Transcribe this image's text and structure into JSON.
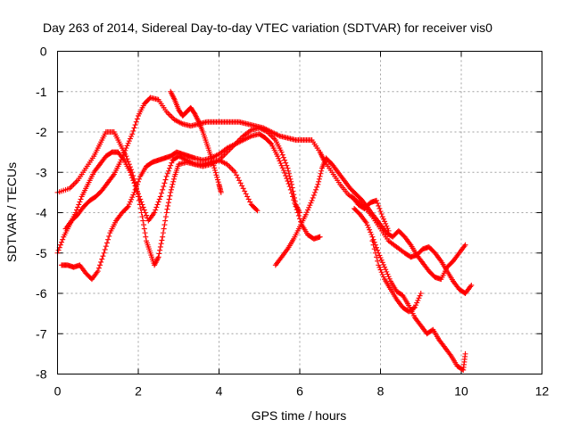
{
  "chart_data": {
    "type": "scatter",
    "title": "Day 263 of 2014, Sidereal Day-to-day VTEC variation (SDTVAR) for receiver vis0",
    "xlabel": "GPS time / hours",
    "ylabel": "SDTVAR / TECUs",
    "xlim": [
      0,
      12
    ],
    "ylim": [
      -8,
      0
    ],
    "xticks": [
      0,
      2,
      4,
      6,
      8,
      10,
      12
    ],
    "yticks": [
      0,
      -1,
      -2,
      -3,
      -4,
      -5,
      -6,
      -7,
      -8
    ],
    "grid": true,
    "marker": "+",
    "color": "#ff0000",
    "series": [
      {
        "name": "trace-1",
        "points": [
          [
            0.0,
            -3.5
          ],
          [
            0.3,
            -3.4
          ],
          [
            0.5,
            -3.2
          ],
          [
            0.7,
            -2.9
          ],
          [
            0.9,
            -2.6
          ],
          [
            1.05,
            -2.3
          ],
          [
            1.2,
            -2.0
          ],
          [
            1.4,
            -2.0
          ],
          [
            1.55,
            -2.3
          ],
          [
            1.7,
            -2.6
          ],
          [
            1.85,
            -3.0
          ],
          [
            1.98,
            -3.5
          ],
          [
            2.1,
            -4.1
          ],
          [
            2.2,
            -4.7
          ],
          [
            2.3,
            -5.0
          ],
          [
            2.4,
            -5.3
          ],
          [
            2.5,
            -5.1
          ],
          [
            2.6,
            -4.6
          ],
          [
            2.7,
            -4.0
          ],
          [
            2.8,
            -3.5
          ],
          [
            2.9,
            -3.1
          ],
          [
            3.0,
            -2.8
          ],
          [
            3.2,
            -2.75
          ],
          [
            3.4,
            -2.8
          ],
          [
            3.6,
            -2.85
          ],
          [
            3.8,
            -2.8
          ],
          [
            4.0,
            -2.7
          ],
          [
            4.2,
            -2.5
          ],
          [
            4.4,
            -2.3
          ],
          [
            4.6,
            -2.1
          ],
          [
            4.8,
            -1.95
          ],
          [
            5.0,
            -1.9
          ],
          [
            5.2,
            -2.0
          ],
          [
            5.4,
            -2.2
          ],
          [
            5.55,
            -2.5
          ],
          [
            5.7,
            -2.9
          ],
          [
            5.8,
            -3.3
          ],
          [
            5.9,
            -3.8
          ],
          [
            6.0,
            -4.0
          ]
        ]
      },
      {
        "name": "trace-2",
        "points": [
          [
            0.0,
            -5.0
          ],
          [
            0.15,
            -4.6
          ],
          [
            0.3,
            -4.3
          ],
          [
            0.45,
            -4.0
          ],
          [
            0.6,
            -3.6
          ],
          [
            0.75,
            -3.3
          ],
          [
            0.9,
            -3.0
          ],
          [
            1.05,
            -2.8
          ],
          [
            1.2,
            -2.6
          ],
          [
            1.35,
            -2.5
          ],
          [
            1.5,
            -2.5
          ],
          [
            1.65,
            -2.7
          ],
          [
            1.8,
            -3.0
          ],
          [
            1.95,
            -3.4
          ],
          [
            2.1,
            -3.8
          ],
          [
            2.25,
            -4.2
          ],
          [
            2.4,
            -4.0
          ],
          [
            2.55,
            -3.6
          ],
          [
            2.7,
            -3.1
          ],
          [
            2.85,
            -2.7
          ],
          [
            3.0,
            -2.6
          ],
          [
            3.2,
            -2.7
          ],
          [
            3.4,
            -2.8
          ],
          [
            3.6,
            -2.8
          ],
          [
            3.8,
            -2.75
          ],
          [
            4.0,
            -2.7
          ],
          [
            4.2,
            -2.8
          ],
          [
            4.4,
            -3.0
          ],
          [
            4.6,
            -3.4
          ],
          [
            4.8,
            -3.8
          ],
          [
            4.95,
            -3.95
          ]
        ]
      },
      {
        "name": "trace-3",
        "points": [
          [
            0.2,
            -4.4
          ],
          [
            0.35,
            -4.2
          ],
          [
            0.5,
            -4.05
          ],
          [
            0.65,
            -3.85
          ],
          [
            0.8,
            -3.7
          ],
          [
            0.95,
            -3.6
          ],
          [
            1.1,
            -3.45
          ],
          [
            1.25,
            -3.25
          ],
          [
            1.4,
            -3.05
          ],
          [
            1.55,
            -2.75
          ],
          [
            1.7,
            -2.4
          ],
          [
            1.85,
            -2.05
          ],
          [
            2.0,
            -1.6
          ],
          [
            2.15,
            -1.3
          ],
          [
            2.3,
            -1.15
          ],
          [
            2.5,
            -1.2
          ],
          [
            2.7,
            -1.5
          ],
          [
            2.9,
            -1.7
          ],
          [
            3.1,
            -1.8
          ],
          [
            3.3,
            -1.85
          ],
          [
            3.5,
            -1.8
          ],
          [
            3.7,
            -1.75
          ],
          [
            3.9,
            -1.75
          ],
          [
            4.1,
            -1.75
          ],
          [
            4.3,
            -1.75
          ],
          [
            4.5,
            -1.75
          ],
          [
            4.7,
            -1.8
          ],
          [
            4.9,
            -1.85
          ],
          [
            5.1,
            -1.9
          ],
          [
            5.3,
            -2.0
          ],
          [
            5.5,
            -2.1
          ],
          [
            5.7,
            -2.15
          ],
          [
            5.9,
            -2.2
          ],
          [
            6.1,
            -2.2
          ],
          [
            6.3,
            -2.2
          ],
          [
            6.5,
            -2.5
          ],
          [
            6.6,
            -2.7
          ],
          [
            6.8,
            -3.0
          ],
          [
            7.0,
            -3.3
          ],
          [
            7.2,
            -3.55
          ],
          [
            7.4,
            -3.7
          ],
          [
            7.6,
            -3.85
          ],
          [
            7.8,
            -4.1
          ],
          [
            8.0,
            -4.4
          ],
          [
            8.2,
            -4.7
          ],
          [
            8.4,
            -4.85
          ],
          [
            8.6,
            -5.0
          ],
          [
            8.75,
            -5.1
          ],
          [
            8.9,
            -5.05
          ],
          [
            9.05,
            -4.9
          ],
          [
            9.2,
            -4.85
          ],
          [
            9.35,
            -5.0
          ],
          [
            9.5,
            -5.2
          ],
          [
            9.65,
            -5.45
          ],
          [
            9.8,
            -5.7
          ],
          [
            9.95,
            -5.9
          ],
          [
            10.1,
            -6.0
          ],
          [
            10.25,
            -5.8
          ]
        ]
      },
      {
        "name": "trace-4",
        "points": [
          [
            0.1,
            -5.3
          ],
          [
            0.25,
            -5.3
          ],
          [
            0.4,
            -5.35
          ],
          [
            0.55,
            -5.3
          ],
          [
            0.7,
            -5.5
          ],
          [
            0.85,
            -5.65
          ],
          [
            1.0,
            -5.45
          ],
          [
            1.15,
            -5.0
          ],
          [
            1.3,
            -4.5
          ],
          [
            1.45,
            -4.2
          ],
          [
            1.6,
            -4.0
          ],
          [
            1.75,
            -3.85
          ],
          [
            1.9,
            -3.5
          ],
          [
            2.05,
            -3.1
          ],
          [
            2.2,
            -2.85
          ],
          [
            2.35,
            -2.75
          ],
          [
            2.5,
            -2.7
          ],
          [
            2.65,
            -2.65
          ],
          [
            2.8,
            -2.6
          ],
          [
            2.95,
            -2.5
          ],
          [
            3.1,
            -2.55
          ],
          [
            3.25,
            -2.6
          ],
          [
            3.4,
            -2.65
          ],
          [
            3.6,
            -2.7
          ],
          [
            3.8,
            -2.65
          ],
          [
            4.0,
            -2.55
          ],
          [
            4.2,
            -2.4
          ],
          [
            4.4,
            -2.3
          ],
          [
            4.6,
            -2.2
          ],
          [
            4.8,
            -2.1
          ],
          [
            5.0,
            -2.05
          ],
          [
            5.15,
            -2.15
          ],
          [
            5.3,
            -2.3
          ],
          [
            5.45,
            -2.6
          ],
          [
            5.6,
            -2.95
          ],
          [
            5.75,
            -3.35
          ],
          [
            5.9,
            -3.85
          ],
          [
            6.05,
            -4.3
          ],
          [
            6.2,
            -4.55
          ],
          [
            6.35,
            -4.65
          ],
          [
            6.5,
            -4.6
          ]
        ]
      },
      {
        "name": "trace-5",
        "points": [
          [
            2.8,
            -1.0
          ],
          [
            2.9,
            -1.2
          ],
          [
            3.0,
            -1.45
          ],
          [
            3.1,
            -1.6
          ],
          [
            3.2,
            -1.5
          ],
          [
            3.3,
            -1.4
          ],
          [
            3.4,
            -1.55
          ],
          [
            3.5,
            -1.75
          ],
          [
            3.6,
            -2.0
          ],
          [
            3.7,
            -2.3
          ],
          [
            3.8,
            -2.6
          ],
          [
            3.9,
            -2.95
          ],
          [
            4.0,
            -3.3
          ],
          [
            4.05,
            -3.5
          ]
        ]
      },
      {
        "name": "trace-6",
        "points": [
          [
            5.4,
            -5.3
          ],
          [
            5.55,
            -5.1
          ],
          [
            5.7,
            -4.9
          ],
          [
            5.85,
            -4.65
          ],
          [
            6.0,
            -4.35
          ],
          [
            6.15,
            -4.05
          ],
          [
            6.3,
            -3.7
          ],
          [
            6.45,
            -3.3
          ],
          [
            6.55,
            -2.9
          ],
          [
            6.65,
            -2.65
          ],
          [
            6.8,
            -2.8
          ],
          [
            6.95,
            -3.0
          ],
          [
            7.1,
            -3.2
          ],
          [
            7.25,
            -3.4
          ],
          [
            7.4,
            -3.55
          ],
          [
            7.55,
            -3.7
          ],
          [
            7.7,
            -3.9
          ],
          [
            7.85,
            -4.1
          ],
          [
            8.0,
            -4.3
          ],
          [
            8.15,
            -4.5
          ],
          [
            8.3,
            -4.6
          ],
          [
            8.45,
            -4.45
          ],
          [
            8.6,
            -4.6
          ],
          [
            8.75,
            -4.8
          ],
          [
            8.9,
            -5.05
          ],
          [
            9.05,
            -5.25
          ],
          [
            9.2,
            -5.45
          ],
          [
            9.35,
            -5.6
          ],
          [
            9.5,
            -5.65
          ],
          [
            9.65,
            -5.35
          ],
          [
            9.8,
            -5.2
          ],
          [
            9.95,
            -5.0
          ],
          [
            10.1,
            -4.8
          ]
        ]
      },
      {
        "name": "trace-7",
        "points": [
          [
            7.35,
            -3.9
          ],
          [
            7.5,
            -4.05
          ],
          [
            7.65,
            -4.25
          ],
          [
            7.8,
            -4.6
          ],
          [
            7.95,
            -5.0
          ],
          [
            8.1,
            -5.35
          ],
          [
            8.25,
            -5.7
          ],
          [
            8.4,
            -5.95
          ],
          [
            8.55,
            -6.05
          ],
          [
            8.7,
            -6.3
          ],
          [
            8.85,
            -6.6
          ],
          [
            9.0,
            -6.8
          ],
          [
            9.15,
            -7.0
          ],
          [
            9.3,
            -6.9
          ],
          [
            9.45,
            -7.15
          ],
          [
            9.6,
            -7.35
          ],
          [
            9.75,
            -7.55
          ],
          [
            9.9,
            -7.8
          ],
          [
            10.05,
            -7.9
          ],
          [
            10.1,
            -7.5
          ]
        ]
      },
      {
        "name": "trace-8",
        "points": [
          [
            7.8,
            -4.7
          ],
          [
            7.95,
            -5.3
          ],
          [
            8.1,
            -5.65
          ],
          [
            8.25,
            -5.9
          ],
          [
            8.4,
            -6.15
          ],
          [
            8.55,
            -6.35
          ],
          [
            8.7,
            -6.45
          ],
          [
            8.85,
            -6.35
          ],
          [
            9.0,
            -6.0
          ]
        ]
      },
      {
        "name": "trace-9",
        "points": [
          [
            7.3,
            -3.6
          ],
          [
            7.45,
            -3.8
          ],
          [
            7.6,
            -3.9
          ],
          [
            7.75,
            -3.75
          ],
          [
            7.9,
            -3.7
          ],
          [
            8.05,
            -4.1
          ],
          [
            8.2,
            -4.45
          ]
        ]
      }
    ]
  }
}
